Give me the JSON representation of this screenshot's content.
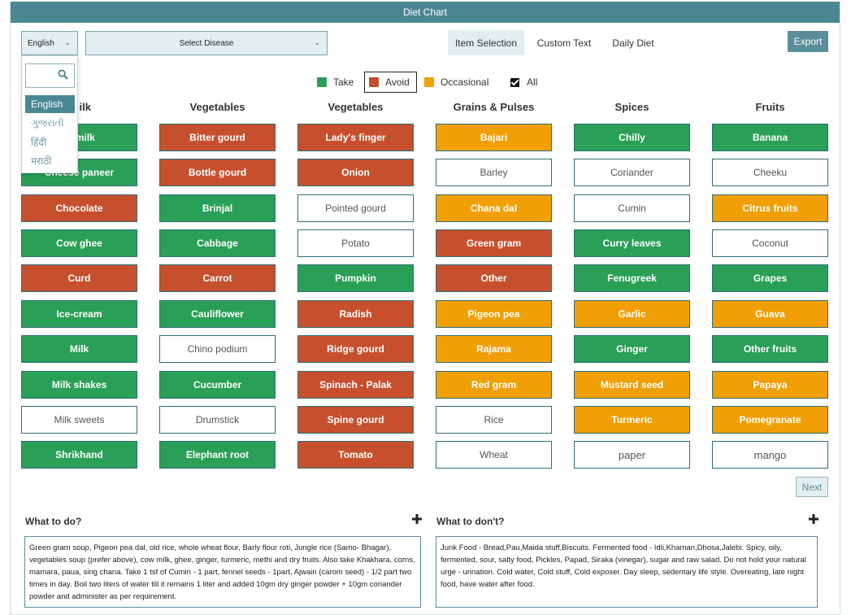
{
  "window": {
    "title": "Diet Chart"
  },
  "language": {
    "selected": "English",
    "search_icon": "search-icon",
    "options": [
      "English",
      "ગુજરાતી",
      "हिंदी",
      "मराठी"
    ]
  },
  "disease": {
    "placeholder": "Select Disease"
  },
  "tabs": [
    "Item Selection",
    "Custom Text",
    "Daily Diet"
  ],
  "export_label": "Export",
  "legend": {
    "take": "Take",
    "avoid": "Avoid",
    "occasional": "Occasional",
    "all": "All",
    "colors": {
      "take": "#2a9f57",
      "avoid": "#c6502e",
      "occasional": "#f09f06"
    }
  },
  "columns": [
    {
      "title": "ilk",
      "items": [
        {
          "label": "er milk",
          "status": "take"
        },
        {
          "label": "Cheese paneer",
          "status": "take"
        },
        {
          "label": "Chocolate",
          "status": "avoid"
        },
        {
          "label": "Cow ghee",
          "status": "take"
        },
        {
          "label": "Curd",
          "status": "avoid"
        },
        {
          "label": "Ice-cream",
          "status": "take"
        },
        {
          "label": "Milk",
          "status": "take"
        },
        {
          "label": "Milk shakes",
          "status": "take"
        },
        {
          "label": "Milk sweets",
          "status": "none"
        },
        {
          "label": "Shrikhand",
          "status": "take"
        }
      ]
    },
    {
      "title": "Vegetables",
      "items": [
        {
          "label": "Bitter gourd",
          "status": "avoid"
        },
        {
          "label": "Bottle gourd",
          "status": "avoid"
        },
        {
          "label": "Brinjal",
          "status": "take"
        },
        {
          "label": "Cabbage",
          "status": "take"
        },
        {
          "label": "Carrot",
          "status": "avoid"
        },
        {
          "label": "Cauliflower",
          "status": "take"
        },
        {
          "label": "Chino podium",
          "status": "none"
        },
        {
          "label": "Cucumber",
          "status": "take"
        },
        {
          "label": "Drumstick",
          "status": "none"
        },
        {
          "label": "Elephant root",
          "status": "take"
        }
      ]
    },
    {
      "title": "Vegetables",
      "items": [
        {
          "label": "Lady's finger",
          "status": "avoid"
        },
        {
          "label": "Onion",
          "status": "avoid"
        },
        {
          "label": "Pointed gourd",
          "status": "none"
        },
        {
          "label": "Potato",
          "status": "none"
        },
        {
          "label": "Pumpkin",
          "status": "take"
        },
        {
          "label": "Radish",
          "status": "avoid"
        },
        {
          "label": "Ridge gourd",
          "status": "avoid"
        },
        {
          "label": "Spinach - Palak",
          "status": "avoid"
        },
        {
          "label": "Spine gourd",
          "status": "avoid"
        },
        {
          "label": "Tomato",
          "status": "avoid"
        }
      ]
    },
    {
      "title": "Grains & Pulses",
      "items": [
        {
          "label": "Bajari",
          "status": "occ"
        },
        {
          "label": "Barley",
          "status": "none"
        },
        {
          "label": "Chana dal",
          "status": "occ"
        },
        {
          "label": "Green gram",
          "status": "avoid"
        },
        {
          "label": "Other",
          "status": "avoid"
        },
        {
          "label": "Pigeon pea",
          "status": "occ"
        },
        {
          "label": "Rajama",
          "status": "occ"
        },
        {
          "label": "Red gram",
          "status": "occ"
        },
        {
          "label": "Rice",
          "status": "none"
        },
        {
          "label": "Wheat",
          "status": "none"
        }
      ]
    },
    {
      "title": "Spices",
      "items": [
        {
          "label": "Chilly",
          "status": "take"
        },
        {
          "label": "Coriander",
          "status": "none"
        },
        {
          "label": "Cumin",
          "status": "none"
        },
        {
          "label": "Curry leaves",
          "status": "take"
        },
        {
          "label": "Fenugreek",
          "status": "take"
        },
        {
          "label": "Garlic",
          "status": "occ"
        },
        {
          "label": "Ginger",
          "status": "take"
        },
        {
          "label": "Mustard seed",
          "status": "occ"
        },
        {
          "label": "Turmeric",
          "status": "occ"
        },
        {
          "label": "paper",
          "status": "none",
          "big": true
        }
      ]
    },
    {
      "title": "Fruits",
      "items": [
        {
          "label": "Banana",
          "status": "take"
        },
        {
          "label": "Cheeku",
          "status": "none"
        },
        {
          "label": "Citrus fruits",
          "status": "occ"
        },
        {
          "label": "Coconut",
          "status": "none"
        },
        {
          "label": "Grapes",
          "status": "take"
        },
        {
          "label": "Guava",
          "status": "occ"
        },
        {
          "label": "Other fruits",
          "status": "take"
        },
        {
          "label": "Papaya",
          "status": "occ"
        },
        {
          "label": "Pomegranate",
          "status": "occ"
        },
        {
          "label": "mango",
          "status": "none",
          "big": true
        }
      ]
    }
  ],
  "next_label": "Next",
  "todo": {
    "title": "What to do?",
    "text": "Green gram soup, Pigeon pea dal, old rice, whole wheat flour, Barly flour roti, Jungle rice (Samo- Bhagar), vegetables soup (prefer above), cow milk, ghee, ginger, turmeric, methi and dry fruits.  Also take Khakhara, corns, mamara, paua, sing chana.  Take 1 tsf of Cumin - 1 part, fennel seeds - 1part, Ajwain (carom seed) - 1/2 part two times in day.  Boil two liters of water till it remains 1 liter and added 10gm dry ginger powder + 10gm coriander powder and administer as per requirement."
  },
  "dont": {
    "title": "What to don't?",
    "text": "Junk Food - Bread,Pau,Maida stuff,Biscuits.  Fermented food - Idli,Khaman,Dhosa,Jalebi. Spicy, oily, fermented, sour, salty food, Pickles, Papad, Siraka (vinegar), sugar and raw salad.  Do not hold your natural urge - urination.  Cold water, Cold stuff, Cold exposer.  Day sleep, sedentary life style.  Overeating, late night food, have water after food."
  }
}
